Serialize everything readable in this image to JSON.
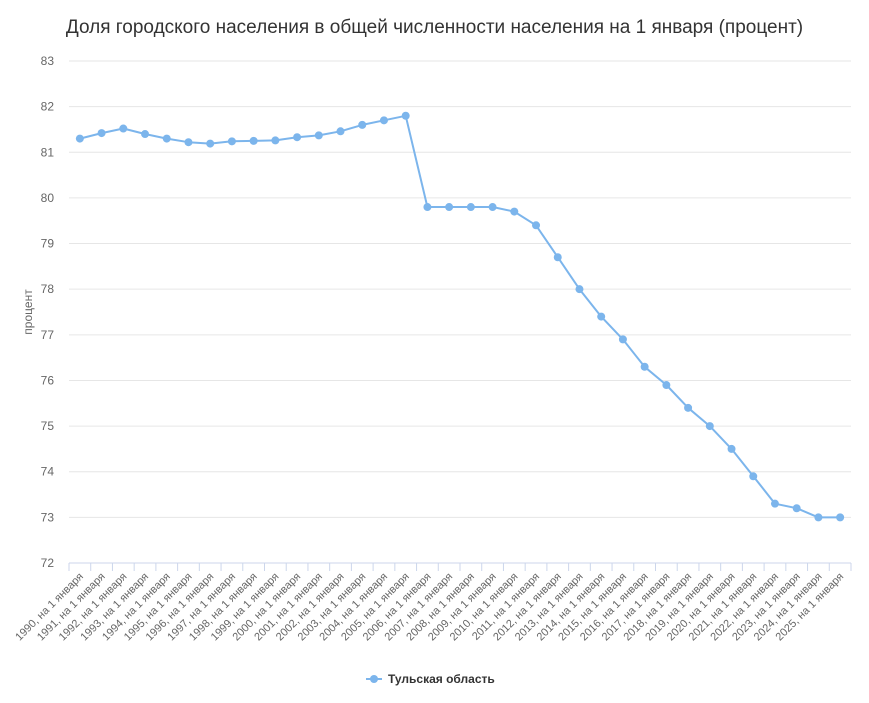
{
  "chart_data": {
    "type": "line",
    "title": "Доля городского населения в общей численности населения на 1 января (процент)",
    "ylabel": "процент",
    "xlabel": "",
    "ylim": [
      72,
      83
    ],
    "yticks": [
      72,
      73,
      74,
      75,
      76,
      77,
      78,
      79,
      80,
      81,
      82,
      83
    ],
    "grid": true,
    "legend_position": "bottom-center",
    "categories": [
      "1990, на 1 января",
      "1991, на 1 января",
      "1992, на 1 января",
      "1993, на 1 января",
      "1994, на 1 января",
      "1995, на 1 января",
      "1996, на 1 января",
      "1997, на 1 января",
      "1998, на 1 января",
      "1999, на 1 января",
      "2000, на 1 января",
      "2001, на 1 января",
      "2002, на 1 января",
      "2003, на 1 января",
      "2004, на 1 января",
      "2005, на 1 января",
      "2006, на 1 января",
      "2007, на 1 января",
      "2008, на 1 января",
      "2009, на 1 января",
      "2010, на 1 января",
      "2011, на 1 января",
      "2012, на 1 января",
      "2013, на 1 января",
      "2014, на 1 января",
      "2015, на 1 января",
      "2016, на 1 января",
      "2017, на 1 января",
      "2018, на 1 января",
      "2019, на 1 января",
      "2020, на 1 января",
      "2021, на 1 января",
      "2022, на 1 января",
      "2023, на 1 января",
      "2024, на 1 января",
      "2025, на 1 января"
    ],
    "series": [
      {
        "name": "Тульская область",
        "color": "#7cb5ec",
        "values": [
          81.3,
          81.42,
          81.52,
          81.4,
          81.3,
          81.22,
          81.19,
          81.24,
          81.25,
          81.26,
          81.33,
          81.37,
          81.46,
          81.6,
          81.7,
          81.8,
          79.8,
          79.8,
          79.8,
          79.8,
          79.7,
          79.4,
          78.7,
          78.0,
          77.4,
          76.9,
          76.3,
          75.9,
          75.4,
          75.0,
          74.5,
          73.9,
          73.3,
          73.2,
          73.0,
          73.0
        ]
      }
    ]
  }
}
